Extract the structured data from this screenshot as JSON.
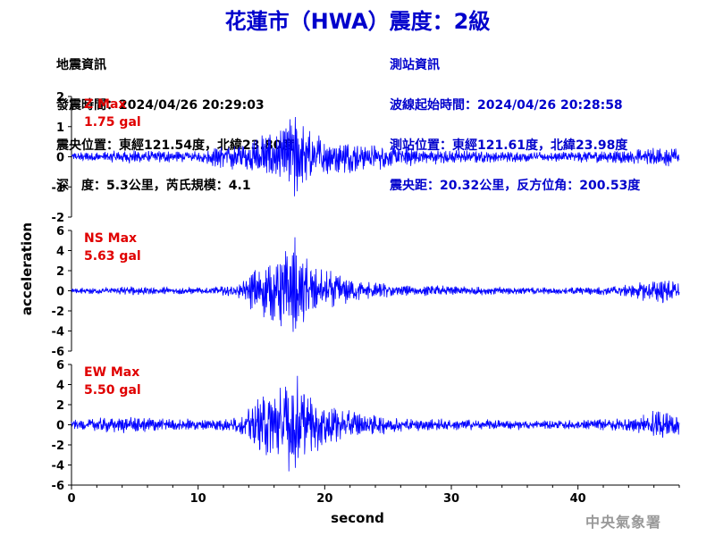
{
  "title": "花蓮市（HWA）震度：2級",
  "quake_info": {
    "heading": "地震資訊",
    "origin_time": "發震時間：2024/04/26 20:29:03",
    "epicenter": "震央位置：東經121.54度，北緯23.80度",
    "depth_magnitude": "深　度：5.3公里，芮氏規模：4.1"
  },
  "station_info": {
    "heading": "測站資訊",
    "wave_start": "波線起始時間：2024/04/26 20:28:58",
    "station_location": "測站位置：東經121.61度，北緯23.98度",
    "distance_azimuth": "震央距：20.32公里，反方位角：200.53度"
  },
  "agency": "中央氣象署",
  "colors": {
    "title": "#0000cc",
    "trace": "#0000ff",
    "max_label": "#e00000",
    "agency": "#999999"
  },
  "chart_data": {
    "type": "line",
    "xlabel": "second",
    "ylabel": "acceleration",
    "xlim": [
      0,
      48
    ],
    "xticks": [
      0,
      10,
      20,
      30,
      40
    ],
    "series": [
      {
        "name": "Z",
        "max_title": "Z Max",
        "max_value": "1.75 gal",
        "ylim": [
          -2,
          2
        ],
        "yticks": [
          -2,
          -1,
          0,
          1,
          2
        ],
        "envelope": [
          [
            0,
            0.15
          ],
          [
            3,
            0.2
          ],
          [
            5,
            0.25
          ],
          [
            8,
            0.2
          ],
          [
            10,
            0.2
          ],
          [
            11,
            0.3
          ],
          [
            12,
            0.45
          ],
          [
            14,
            0.5
          ],
          [
            15,
            0.9
          ],
          [
            16,
            0.8
          ],
          [
            17,
            1.1
          ],
          [
            17.6,
            1.7
          ],
          [
            18.2,
            1.2
          ],
          [
            19,
            0.9
          ],
          [
            20,
            0.7
          ],
          [
            22,
            0.55
          ],
          [
            24,
            0.45
          ],
          [
            27,
            0.3
          ],
          [
            30,
            0.25
          ],
          [
            35,
            0.18
          ],
          [
            40,
            0.2
          ],
          [
            44,
            0.25
          ],
          [
            47,
            0.35
          ],
          [
            48,
            0.3
          ]
        ]
      },
      {
        "name": "NS",
        "max_title": "NS Max",
        "max_value": "5.63 gal",
        "ylim": [
          -6,
          6
        ],
        "yticks": [
          -6,
          -4,
          -2,
          0,
          2,
          4,
          6
        ],
        "envelope": [
          [
            0,
            0.3
          ],
          [
            5,
            0.5
          ],
          [
            8,
            0.4
          ],
          [
            10,
            0.35
          ],
          [
            12,
            0.5
          ],
          [
            13.5,
            0.9
          ],
          [
            14.5,
            2.6
          ],
          [
            16,
            3.2
          ],
          [
            17,
            4.5
          ],
          [
            17.6,
            5.6
          ],
          [
            18.2,
            4.0
          ],
          [
            19,
            3.0
          ],
          [
            20,
            2.3
          ],
          [
            22,
            1.4
          ],
          [
            24,
            0.9
          ],
          [
            27,
            0.6
          ],
          [
            30,
            0.5
          ],
          [
            35,
            0.4
          ],
          [
            40,
            0.4
          ],
          [
            44,
            0.6
          ],
          [
            46.5,
            1.5
          ],
          [
            48,
            0.8
          ]
        ]
      },
      {
        "name": "EW",
        "max_title": "EW Max",
        "max_value": "5.50 gal",
        "ylim": [
          -6,
          6
        ],
        "yticks": [
          -6,
          -4,
          -2,
          0,
          2,
          4,
          6
        ],
        "envelope": [
          [
            0,
            0.5
          ],
          [
            3,
            0.8
          ],
          [
            5,
            0.9
          ],
          [
            7,
            0.7
          ],
          [
            10,
            0.6
          ],
          [
            12,
            0.7
          ],
          [
            13.5,
            1.0
          ],
          [
            14.5,
            2.8
          ],
          [
            16,
            3.6
          ],
          [
            17,
            4.6
          ],
          [
            17.6,
            5.5
          ],
          [
            18.2,
            4.2
          ],
          [
            19,
            3.2
          ],
          [
            20,
            2.2
          ],
          [
            22,
            1.6
          ],
          [
            24,
            1.0
          ],
          [
            27,
            0.7
          ],
          [
            30,
            0.6
          ],
          [
            35,
            0.5
          ],
          [
            40,
            0.5
          ],
          [
            44,
            0.8
          ],
          [
            46.5,
            1.7
          ],
          [
            48,
            1.0
          ]
        ]
      }
    ]
  }
}
